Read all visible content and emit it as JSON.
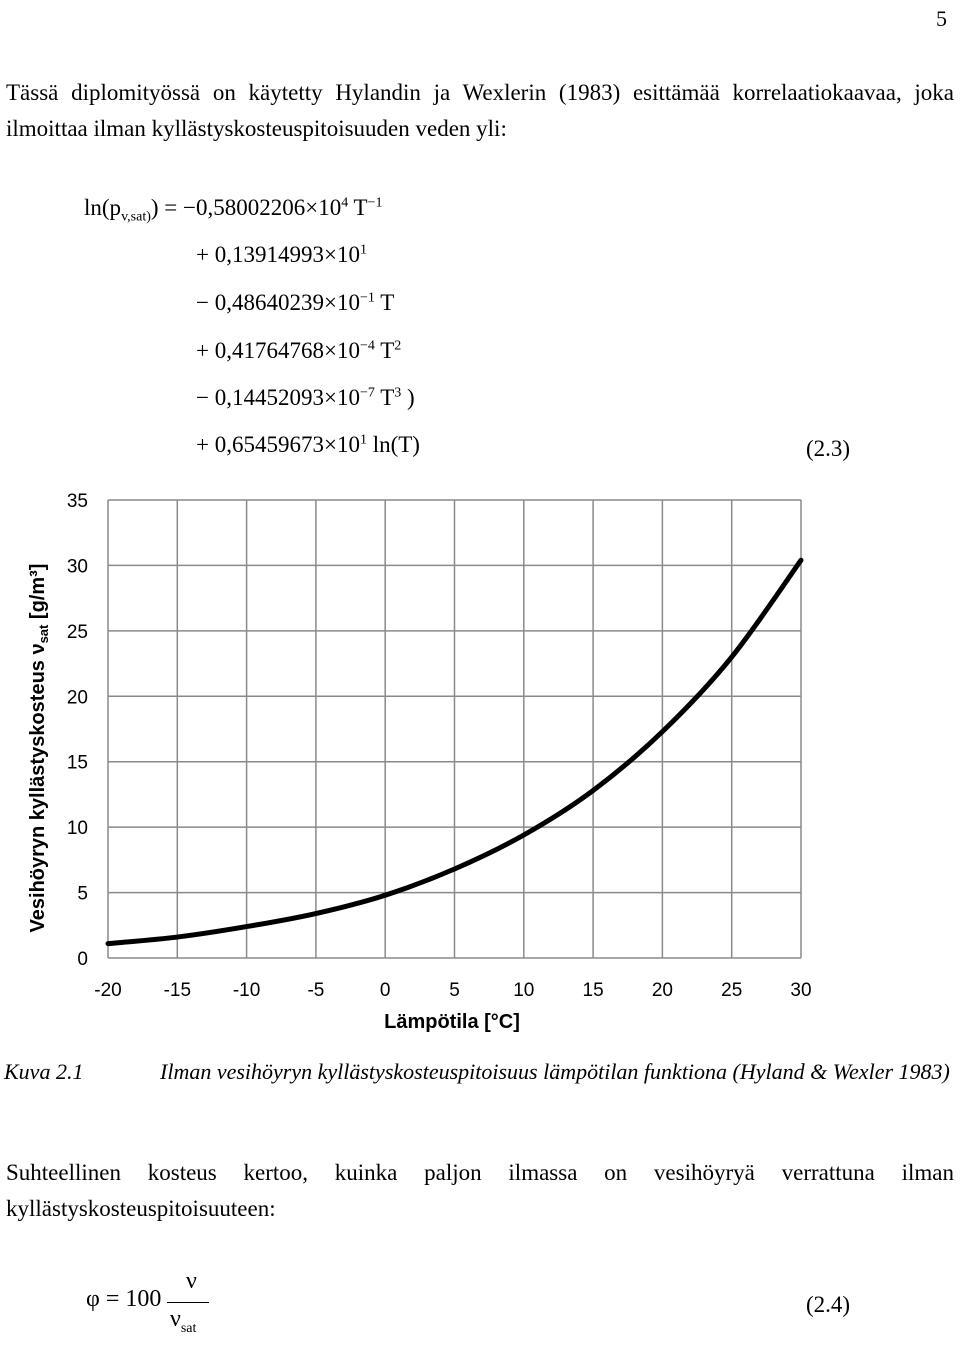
{
  "page": {
    "number": "5"
  },
  "paragraph1": "Tässä diplomityössä on käytetty Hylandin ja Wexlerin (1983) esittämää korrelaatiokaavaa, joka ilmoittaa ilman kyllästyskosteuspitoisuuden veden yli:",
  "equation_2_3": {
    "lhs_prefix": "ln(p",
    "lhs_sub": "v,sat)",
    "lhs_suffix": ") = −0,58002206×10",
    "l1_exp": "4",
    "l1_t": " T",
    "l1_texp": "−1",
    "l2_text": "+ 0,13914993×10",
    "l2_exp": "1",
    "l3_text": "− 0,48640239×10",
    "l3_exp": "−1",
    "l3_t": " T",
    "l4_text": "+ 0,41764768×10",
    "l4_exp": "−4",
    "l4_t": " T",
    "l4_texp": "2",
    "l5_text": "− 0,14452093×10",
    "l5_exp": "−7",
    "l5_t": " T",
    "l5_texp": "3",
    "l5_close": " )",
    "l6_text": "+ 0,65459673×10",
    "l6_exp": "1",
    "l6_ln": " ln(T)",
    "number": "(2.3)"
  },
  "chart_data": {
    "type": "line",
    "xlabel": "Lämpötila [°C]",
    "ylabel_main": "Vesihöyryn kyllästyskosteus  ν",
    "ylabel_sub": "sat",
    "ylabel_unit": " [g/m³]",
    "x_ticks": [
      "-20",
      "-15",
      "-10",
      "-5",
      "0",
      "5",
      "10",
      "15",
      "20",
      "25",
      "30"
    ],
    "y_ticks": [
      "0",
      "5",
      "10",
      "15",
      "20",
      "25",
      "30",
      "35"
    ],
    "xlim": [
      -20,
      30
    ],
    "ylim": [
      0,
      35
    ],
    "grid": true,
    "series": [
      {
        "x": [
          -20,
          -15,
          -10,
          -5,
          0,
          5,
          10,
          15,
          20,
          25,
          30
        ],
        "y": [
          1.1,
          1.6,
          2.4,
          3.4,
          4.8,
          6.8,
          9.4,
          12.8,
          17.3,
          23.0,
          30.4
        ]
      }
    ]
  },
  "caption": {
    "label": "Kuva 2.1",
    "text": "Ilman vesihöyryn kyllästyskosteuspitoisuus lämpötilan funktiona (Hyland & Wexler 1983)"
  },
  "paragraph2": "Suhteellinen kosteus kertoo, kuinka paljon ilmassa on vesihöyryä verrattuna ilman kyllästyskosteuspitoisuuteen:",
  "equation_2_4": {
    "lhs": "φ = 100",
    "numerator": "ν",
    "denominator": "ν",
    "denominator_sub": "sat",
    "number": "(2.4)"
  }
}
